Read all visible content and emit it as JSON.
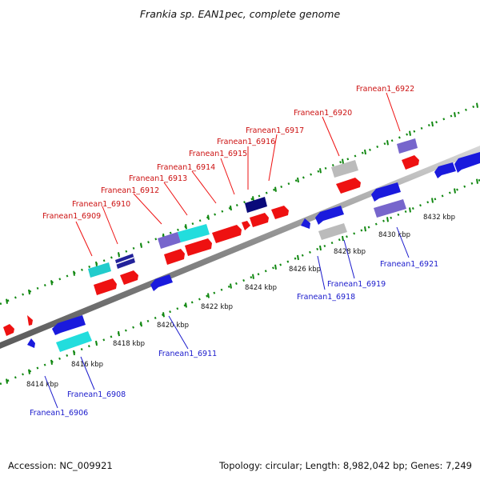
{
  "title": "Frankia sp. EAN1pec, complete genome",
  "footer": {
    "accession": "Accession: NC_009921",
    "summary": "Topology: circular; Length: 8,982,042 bp; Genes: 7,249"
  },
  "colors": {
    "forward_label": "#cc1111",
    "reverse_label": "#1a1acc",
    "tick": "#118811",
    "backbone": "#8c8c8c"
  },
  "kbp_labels": [
    "8414 kbp",
    "8416 kbp",
    "8418 kbp",
    "8420 kbp",
    "8422 kbp",
    "8424 kbp",
    "8426 kbp",
    "8428 kbp",
    "8430 kbp",
    "8432 kbp"
  ],
  "forward_genes": [
    "Franean1_6909",
    "Franean1_6910",
    "Franean1_6912",
    "Franean1_6913",
    "Franean1_6914",
    "Franean1_6915",
    "Franean1_6916",
    "Franean1_6917",
    "Franean1_6920",
    "Franean1_6922"
  ],
  "reverse_genes": [
    "Franean1_6906",
    "Franean1_6908",
    "Franean1_6911",
    "Franean1_6918",
    "Franean1_6919",
    "Franean1_6921"
  ]
}
